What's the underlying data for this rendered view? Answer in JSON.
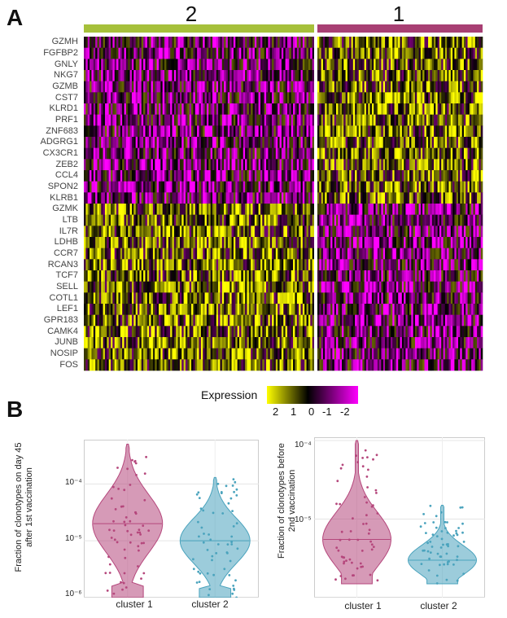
{
  "panel_a": {
    "letter": "A",
    "clusters": [
      {
        "label": "2",
        "color": "#a6c03a"
      },
      {
        "label": "1",
        "color": "#a83f73"
      }
    ],
    "genes": [
      "GZMH",
      "FGFBP2",
      "GNLY",
      "NKG7",
      "GZMB",
      "CST7",
      "KLRD1",
      "PRF1",
      "ZNF683",
      "ADGRG1",
      "CX3CR1",
      "ZEB2",
      "CCL4",
      "SPON2",
      "KLRB1",
      "GZMK",
      "LTB",
      "IL7R",
      "LDHB",
      "CCR7",
      "RCAN3",
      "TCF7",
      "SELL",
      "COTL1",
      "LEF1",
      "GPR183",
      "CAMK4",
      "JUNB",
      "NOSIP",
      "FOS"
    ],
    "legend": {
      "title": "Expression",
      "ticks": [
        "2",
        "1",
        "0",
        "-1",
        "-2"
      ],
      "colors": [
        "#ffff00",
        "#000000",
        "#ff00ff"
      ]
    }
  },
  "panel_b": {
    "letter": "B",
    "chart_data": [
      {
        "type": "violin",
        "ylabel": "Fraction of clonotypes on day 45 after 1st vaccination",
        "yscale": "log",
        "ylim": [
          1e-06,
          0.0006
        ],
        "yticks": [
          "10⁻⁴",
          "10⁻⁵",
          "10⁻⁶"
        ],
        "categories": [
          "cluster 1",
          "cluster 2"
        ],
        "medians": [
          2e-05,
          1e-05
        ],
        "series": [
          {
            "name": "cluster 1",
            "color": "#b5477c",
            "min": 1e-06,
            "max": 0.0005
          },
          {
            "name": "cluster 2",
            "color": "#4aa3bd",
            "min": 1e-06,
            "max": 0.00013
          }
        ],
        "grid": true
      },
      {
        "type": "violin",
        "ylabel": "Fraction of clonotypes before 2nd vaccination",
        "yscale": "log",
        "ylim": [
          1e-06,
          0.00011
        ],
        "yticks": [
          "10⁻⁴",
          "10⁻⁵"
        ],
        "categories": [
          "cluster 1",
          "cluster 2"
        ],
        "medians": [
          5.5e-06,
          3e-06
        ],
        "series": [
          {
            "name": "cluster 1",
            "color": "#b5477c",
            "min": 1.5e-06,
            "max": 0.0001
          },
          {
            "name": "cluster 2",
            "color": "#4aa3bd",
            "min": 1.5e-06,
            "max": 1.5e-05
          }
        ],
        "grid": true
      }
    ]
  }
}
